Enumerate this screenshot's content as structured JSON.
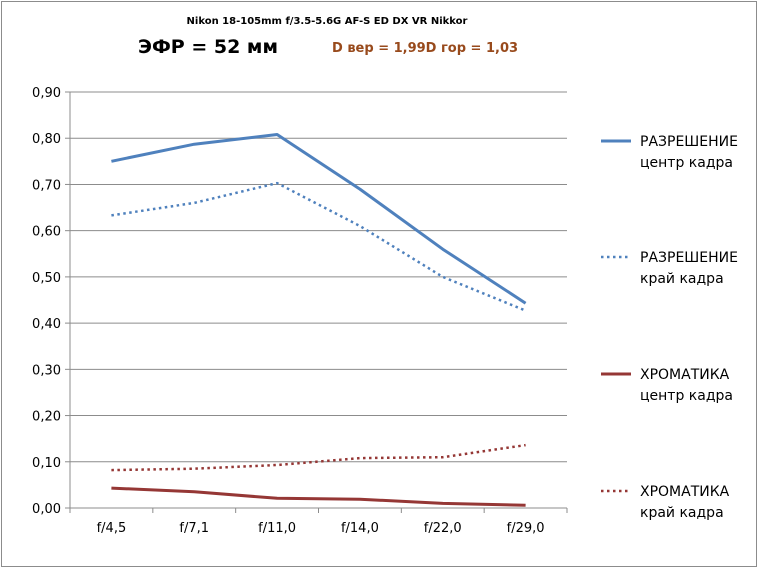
{
  "chart_data": {
    "type": "line",
    "title": "Nikon 18-105mm f/3.5-5.6G AF-S ED DX VR Nikkor",
    "subtitle": "ЭФР = 52 мм",
    "annotation": "D вер = 1,99D гор = 1,03",
    "annotation_color": "#984a1c",
    "categories": [
      "f/4,5",
      "f/7,1",
      "f/11,0",
      "f/14,0",
      "f/22,0",
      "f/29,0"
    ],
    "y_ticks": [
      "0,00",
      "0,10",
      "0,20",
      "0,30",
      "0,40",
      "0,50",
      "0,60",
      "0,70",
      "0,80",
      "0,90"
    ],
    "ylim": [
      0,
      0.9
    ],
    "grid": true,
    "legend_position": "right",
    "series": [
      {
        "name_line1": "РАЗРЕШЕНИЕ",
        "name_line2": "центр кадра",
        "color": "#4f81bd",
        "style": "solid",
        "values": [
          0.75,
          0.787,
          0.808,
          0.69,
          0.56,
          0.443
        ]
      },
      {
        "name_line1": "РАЗРЕШЕНИЕ",
        "name_line2": "край кадра",
        "color": "#4f81bd",
        "style": "dotted",
        "values": [
          0.633,
          0.66,
          0.703,
          0.61,
          0.5,
          0.427
        ]
      },
      {
        "name_line1": "ХРОМАТИКА",
        "name_line2": "центр кадра",
        "color": "#953735",
        "style": "solid",
        "values": [
          0.043,
          0.035,
          0.021,
          0.019,
          0.01,
          0.006
        ]
      },
      {
        "name_line1": "ХРОМАТИКА",
        "name_line2": "край кадра",
        "color": "#953735",
        "style": "dotted",
        "values": [
          0.082,
          0.085,
          0.093,
          0.108,
          0.11,
          0.136
        ]
      }
    ]
  }
}
